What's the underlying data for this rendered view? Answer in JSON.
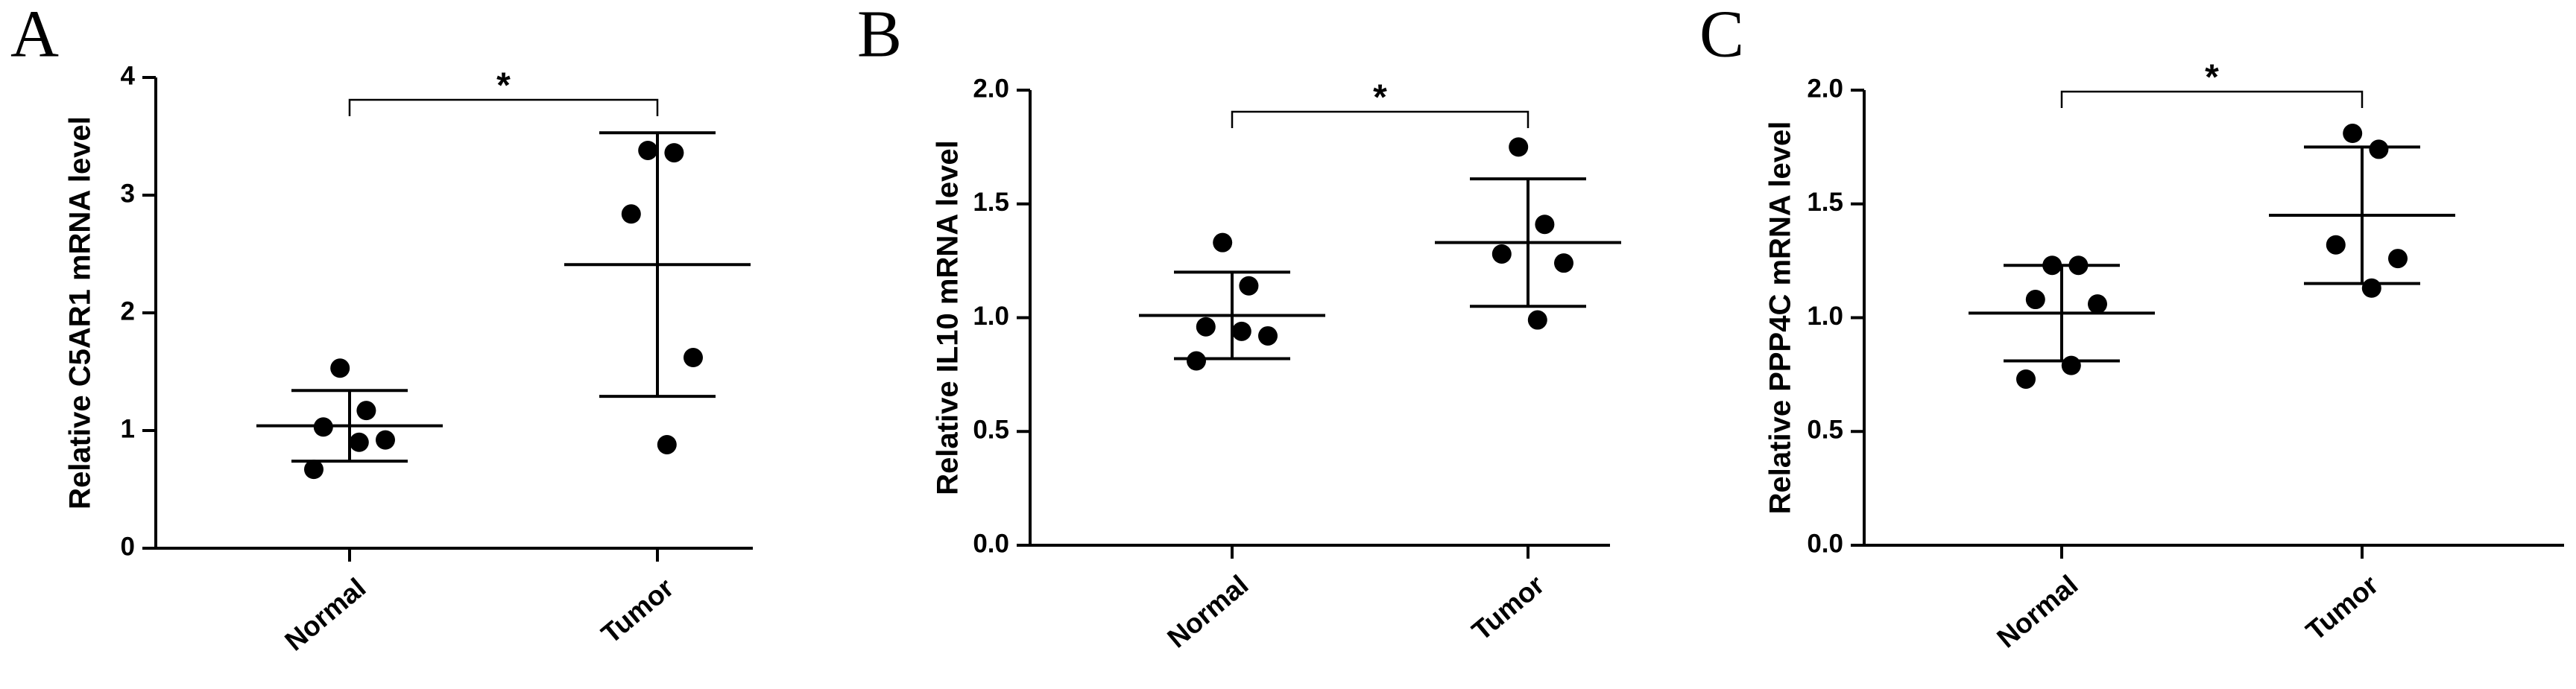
{
  "chart_data": [
    {
      "type": "dotplot",
      "panel_label": "A",
      "y_label": "Relative C5AR1 mRNA level",
      "annotation": "*",
      "categories": [
        "Normal",
        "Tumor"
      ],
      "color": "#000000",
      "points": [
        [
          1.53,
          1.17,
          1.03,
          0.92,
          0.9,
          0.67
        ],
        [
          3.38,
          3.36,
          2.84,
          1.62,
          0.88
        ]
      ],
      "mean": [
        1.04,
        2.41
      ],
      "sd": [
        0.3,
        1.12
      ],
      "ylim": [
        0,
        4
      ],
      "yticks": [
        0,
        1,
        2,
        3,
        4
      ]
    },
    {
      "type": "dotplot",
      "panel_label": "B",
      "y_label": "Relative IL10 mRNA level",
      "annotation": "*",
      "categories": [
        "Normal",
        "Tumor"
      ],
      "color": "#000000",
      "points": [
        [
          1.33,
          1.14,
          0.96,
          0.92,
          0.94,
          0.81
        ],
        [
          1.75,
          1.41,
          1.28,
          1.24,
          0.99
        ]
      ],
      "mean": [
        1.01,
        1.33
      ],
      "sd": [
        0.19,
        0.28
      ],
      "ylim": [
        0,
        2
      ],
      "yticks": [
        {
          "value": 0,
          "label": "0.0"
        },
        {
          "value": 0.5,
          "label": "0.5"
        },
        {
          "value": 1,
          "label": "1.0"
        },
        {
          "value": 1.5,
          "label": "1.5"
        },
        {
          "value": 2,
          "label": "2.0"
        }
      ]
    },
    {
      "type": "dotplot",
      "panel_label": "C",
      "y_label": "Relative PPP4C mRNA level",
      "annotation": "*",
      "categories": [
        "Normal",
        "Tumor"
      ],
      "color": "#000000",
      "points": [
        [
          1.23,
          1.23,
          1.08,
          1.06,
          0.79,
          0.73
        ],
        [
          1.81,
          1.74,
          1.32,
          1.26,
          1.13
        ]
      ],
      "mean": [
        1.02,
        1.45
      ],
      "sd": [
        0.21,
        0.3
      ],
      "ylim": [
        0,
        2
      ],
      "yticks": [
        {
          "value": 0,
          "label": "0.0"
        },
        {
          "value": 0.5,
          "label": "0.5"
        },
        {
          "value": 1,
          "label": "1.0"
        },
        {
          "value": 1.5,
          "label": "1.5"
        },
        {
          "value": 2,
          "label": "2.0"
        }
      ]
    }
  ]
}
